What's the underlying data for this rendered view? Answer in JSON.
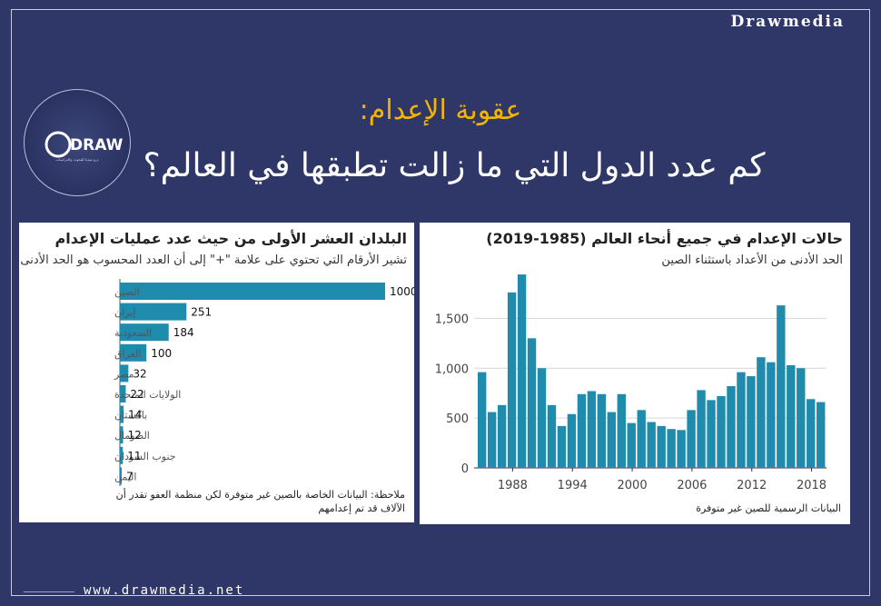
{
  "brand": "Drawmedia",
  "logo": {
    "word": "DRAW",
    "tagline": "درو ميديا للبحوث والدراسات"
  },
  "title": {
    "line1": "عقوبة الإعدام:",
    "line2": "كم عدد الدول التي ما زالت تطبقها في العالم؟"
  },
  "footer": {
    "site": "www.drawmedia.net"
  },
  "colors": {
    "bar": "#1f8cae",
    "background": "#2e3767",
    "accent": "#f5b400"
  },
  "chart_data": [
    {
      "type": "bar",
      "orientation": "horizontal",
      "title": "البلدان العشر الأولى من حيث عدد عمليات الإعدام",
      "subtitle": "تشير الأرقام التي تحتوي على علامة \"+\" إلى أن العدد المحسوب هو الحد الأدنى",
      "note": "ملاحظة: البيانات الخاصة بالصين غير متوفرة لكن منظمة العفو تقدر أن الآلاف قد تم إعدامهم",
      "categories": [
        "الصين",
        "إيران",
        "السعودية",
        "العراق",
        "مصر",
        "الولايات المتحدة",
        "باكستان",
        "الصومال",
        "جنوب السودان",
        "اليمن"
      ],
      "values": [
        1000,
        251,
        184,
        100,
        32,
        22,
        14,
        12,
        11,
        7
      ],
      "labels": [
        "1000",
        "251",
        "184",
        "100",
        "32",
        "22",
        "14",
        "12",
        "11",
        "7"
      ],
      "xlim": [
        0,
        1000
      ]
    },
    {
      "type": "bar",
      "title": "حالات الإعدام في جميع أنحاء العالم (1985-2019)",
      "subtitle": "الحد الأدنى من الأعداد باستثناء الصين",
      "source": "البيانات الرسمية للصين غير متوفرة",
      "x": [
        1985,
        1986,
        1987,
        1988,
        1989,
        1990,
        1991,
        1992,
        1993,
        1994,
        1995,
        1996,
        1997,
        1998,
        1999,
        2000,
        2001,
        2002,
        2003,
        2004,
        2005,
        2006,
        2007,
        2008,
        2009,
        2010,
        2011,
        2012,
        2013,
        2014,
        2015,
        2016,
        2017,
        2018,
        2019
      ],
      "values": [
        960,
        560,
        630,
        1760,
        1940,
        1300,
        1000,
        630,
        420,
        540,
        740,
        770,
        740,
        560,
        740,
        450,
        580,
        460,
        420,
        390,
        380,
        580,
        780,
        680,
        720,
        820,
        960,
        920,
        1110,
        1060,
        1630,
        1030,
        1000,
        690,
        660
      ],
      "ylim": [
        0,
        1950
      ],
      "yticks": [
        0,
        500,
        1000,
        1500
      ],
      "ytick_labels": [
        "0",
        "500",
        "1,000",
        "1,500"
      ],
      "xticks": [
        1988,
        1994,
        2000,
        2006,
        2012,
        2018
      ],
      "xtick_labels": [
        "1988",
        "1994",
        "2000",
        "2006",
        "2012",
        "2018"
      ],
      "grid": true
    }
  ]
}
